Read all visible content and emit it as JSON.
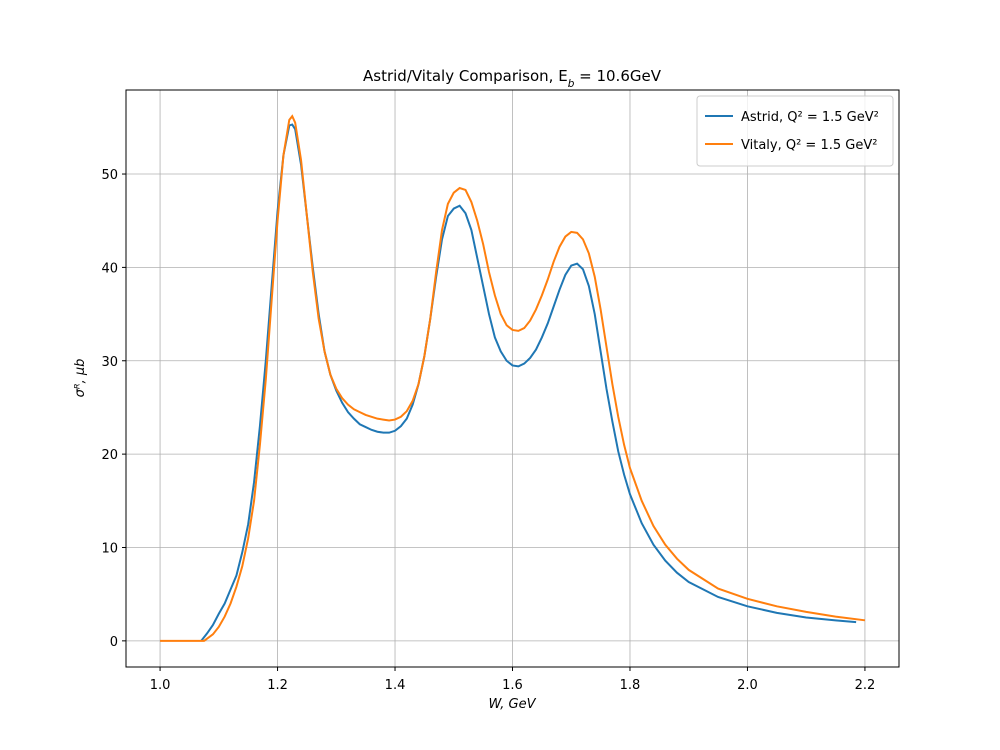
{
  "chart_data": {
    "type": "line",
    "title": "Astrid/Vitaly Comparison, E_b = 10.6GeV",
    "xlabel": "W, GeV",
    "ylabel": "σᴿ, μb",
    "xlim": [
      0.942,
      2.258
    ],
    "ylim": [
      -2.8,
      59
    ],
    "xticks": [
      {
        "value": 1,
        "label": "1.0"
      },
      1.2,
      1.4,
      1.6,
      1.8,
      {
        "value": 2,
        "label": "2.0"
      },
      2.2
    ],
    "yticks": [
      0,
      10,
      20,
      30,
      40,
      50
    ],
    "grid": true,
    "legend": "upper-right",
    "series": [
      {
        "name": "Astrid, Q² = 1.5 GeV²",
        "color": "#1f77b4",
        "x": [
          1.07,
          1.08,
          1.09,
          1.1,
          1.11,
          1.12,
          1.13,
          1.14,
          1.15,
          1.16,
          1.17,
          1.18,
          1.19,
          1.2,
          1.21,
          1.22,
          1.225,
          1.23,
          1.24,
          1.25,
          1.26,
          1.27,
          1.28,
          1.29,
          1.3,
          1.31,
          1.32,
          1.33,
          1.34,
          1.35,
          1.36,
          1.37,
          1.38,
          1.39,
          1.4,
          1.41,
          1.42,
          1.43,
          1.44,
          1.45,
          1.46,
          1.47,
          1.48,
          1.49,
          1.5,
          1.51,
          1.52,
          1.53,
          1.54,
          1.55,
          1.56,
          1.57,
          1.58,
          1.59,
          1.6,
          1.61,
          1.62,
          1.63,
          1.64,
          1.65,
          1.66,
          1.67,
          1.68,
          1.69,
          1.7,
          1.71,
          1.72,
          1.73,
          1.74,
          1.75,
          1.76,
          1.77,
          1.78,
          1.79,
          1.8,
          1.82,
          1.84,
          1.86,
          1.88,
          1.9,
          1.95,
          2.0,
          2.05,
          2.1,
          2.15,
          2.185
        ],
        "values": [
          0,
          0.8,
          1.7,
          2.9,
          4.0,
          5.5,
          7,
          9.5,
          12.5,
          17,
          23,
          30,
          38,
          46,
          52,
          55.2,
          55.3,
          54.8,
          51,
          45.5,
          40,
          35,
          31,
          28.5,
          26.8,
          25.5,
          24.5,
          23.8,
          23.2,
          22.9,
          22.6,
          22.4,
          22.3,
          22.3,
          22.5,
          23,
          23.8,
          25.3,
          27.5,
          30.5,
          34.5,
          39,
          43,
          45.5,
          46.3,
          46.6,
          45.8,
          44,
          41,
          38,
          35,
          32.5,
          31,
          30,
          29.5,
          29.4,
          29.7,
          30.3,
          31.2,
          32.5,
          34,
          35.8,
          37.6,
          39.2,
          40.2,
          40.4,
          39.8,
          38,
          35,
          31,
          27,
          23.5,
          20.3,
          17.8,
          15.7,
          12.6,
          10.3,
          8.6,
          7.3,
          6.3,
          4.7,
          3.7,
          3.0,
          2.5,
          2.2,
          2.0
        ]
      },
      {
        "name": "Vitaly, Q² = 1.5 GeV²",
        "color": "#ff7f0e",
        "x": [
          1.0,
          1.05,
          1.075,
          1.09,
          1.1,
          1.11,
          1.12,
          1.13,
          1.14,
          1.15,
          1.16,
          1.17,
          1.18,
          1.19,
          1.2,
          1.21,
          1.22,
          1.225,
          1.23,
          1.24,
          1.25,
          1.26,
          1.27,
          1.28,
          1.29,
          1.3,
          1.31,
          1.32,
          1.33,
          1.34,
          1.35,
          1.36,
          1.37,
          1.38,
          1.39,
          1.4,
          1.41,
          1.42,
          1.43,
          1.44,
          1.45,
          1.46,
          1.47,
          1.48,
          1.49,
          1.5,
          1.51,
          1.52,
          1.53,
          1.54,
          1.55,
          1.56,
          1.57,
          1.58,
          1.59,
          1.6,
          1.61,
          1.62,
          1.63,
          1.64,
          1.65,
          1.66,
          1.67,
          1.68,
          1.69,
          1.7,
          1.71,
          1.72,
          1.73,
          1.74,
          1.75,
          1.76,
          1.77,
          1.78,
          1.79,
          1.8,
          1.82,
          1.84,
          1.86,
          1.88,
          1.9,
          1.95,
          2.0,
          2.05,
          2.1,
          2.15,
          2.2
        ],
        "values": [
          0,
          0,
          0,
          0.7,
          1.5,
          2.6,
          4,
          5.8,
          8,
          11,
          15,
          21,
          28,
          36.5,
          45,
          52,
          55.8,
          56.2,
          55.5,
          51.5,
          45.5,
          39.5,
          34.5,
          31,
          28.5,
          27,
          26,
          25.3,
          24.8,
          24.5,
          24.2,
          24,
          23.8,
          23.7,
          23.6,
          23.7,
          24,
          24.6,
          25.7,
          27.5,
          30.5,
          34.5,
          39.5,
          44,
          46.8,
          48,
          48.5,
          48.3,
          47,
          45,
          42.5,
          39.5,
          37,
          35,
          33.8,
          33.3,
          33.2,
          33.5,
          34.3,
          35.5,
          37,
          38.7,
          40.6,
          42.2,
          43.3,
          43.8,
          43.7,
          43,
          41.5,
          39,
          35.5,
          31.5,
          27.5,
          24,
          21,
          18.5,
          15,
          12.3,
          10.3,
          8.8,
          7.6,
          5.6,
          4.5,
          3.7,
          3.1,
          2.6,
          2.2
        ]
      }
    ]
  }
}
